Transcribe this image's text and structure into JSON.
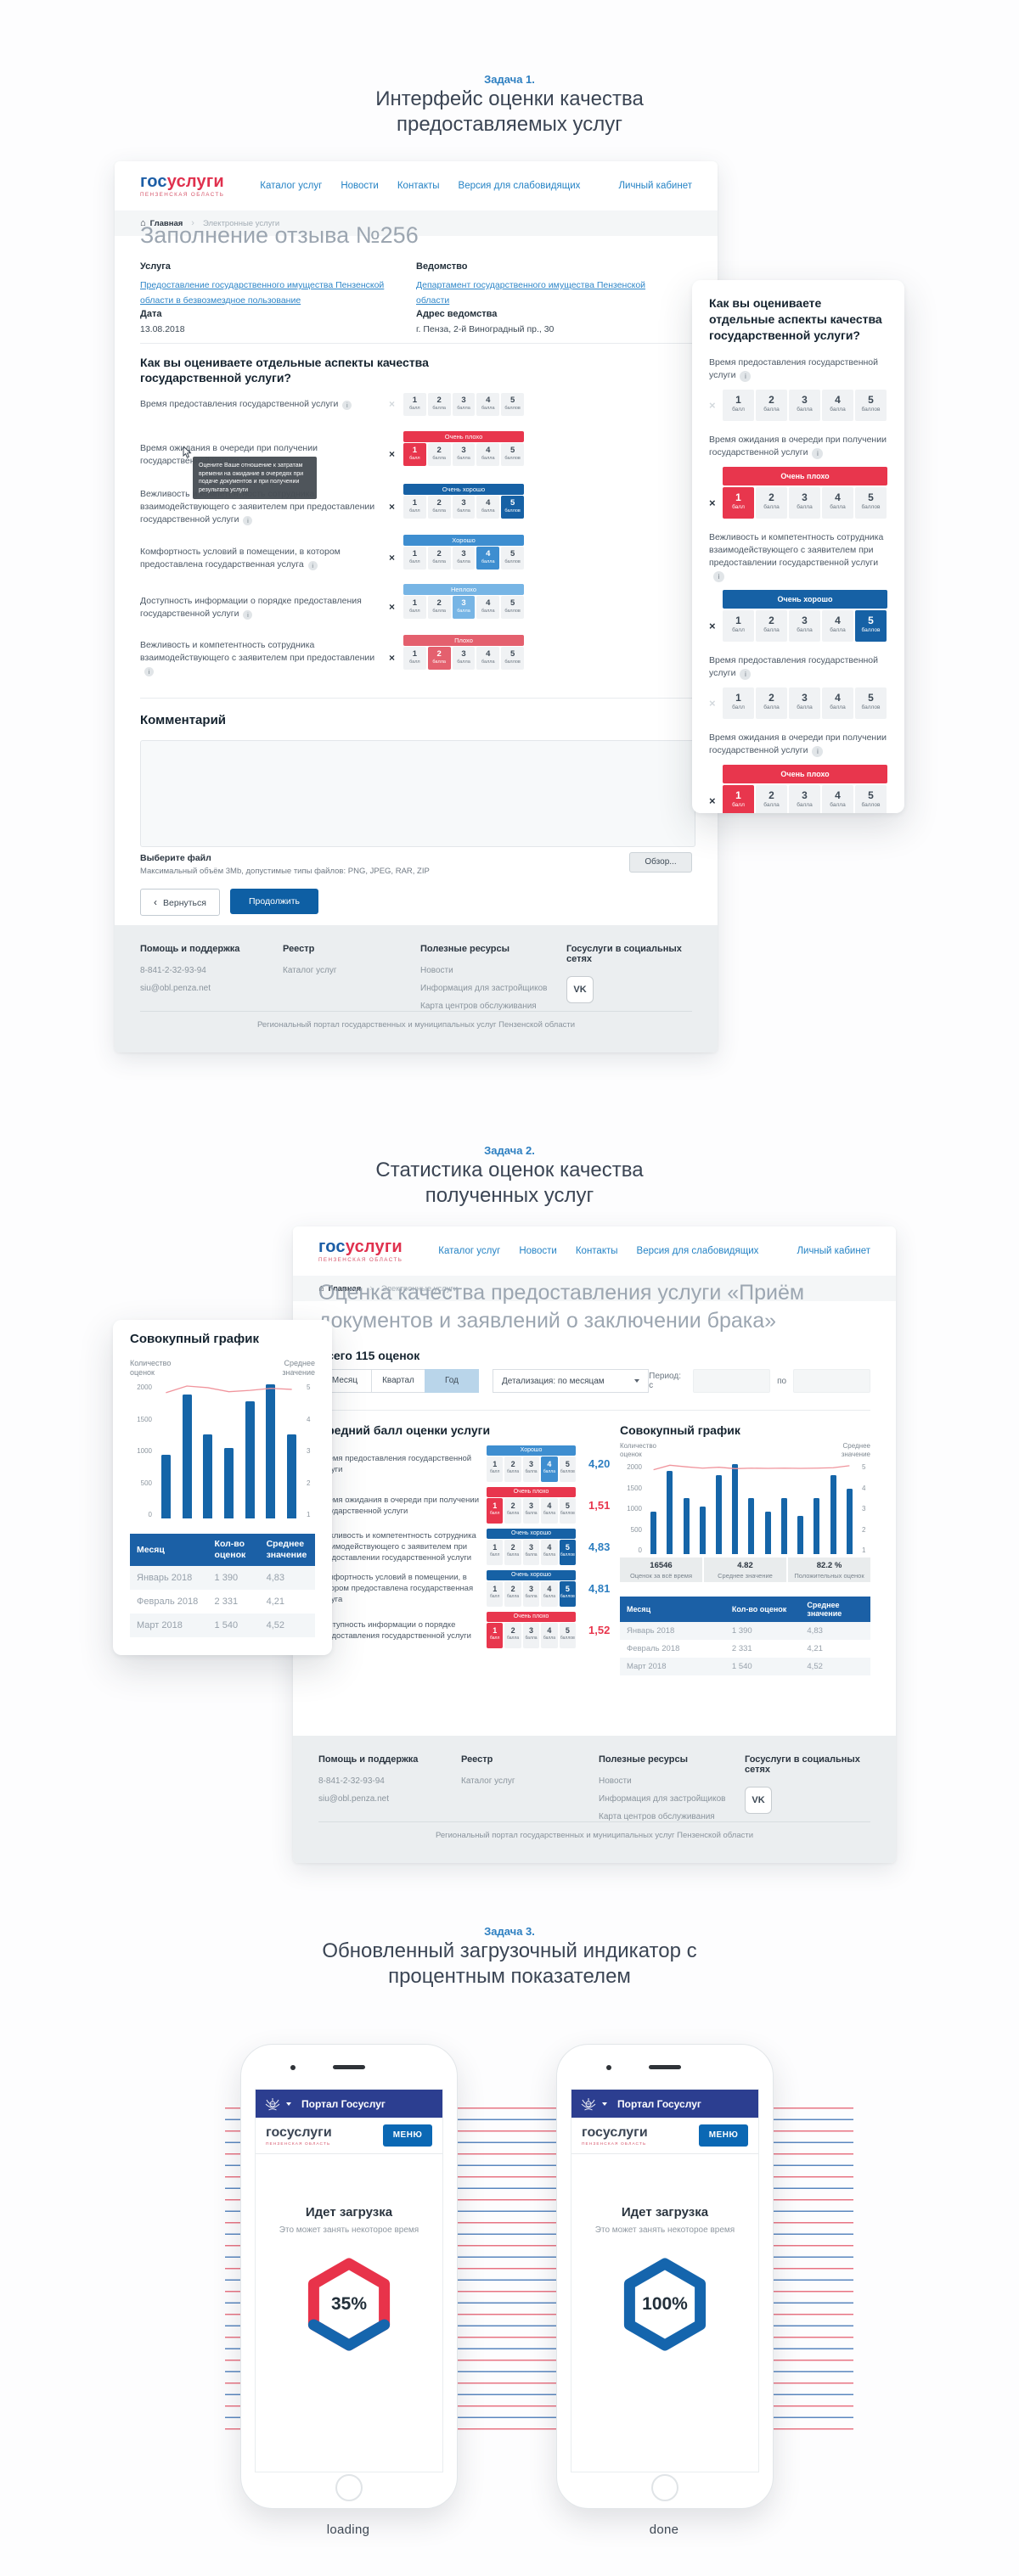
{
  "task1": {
    "label": "Задача 1.",
    "title": "Интерфейс оценки качества предоставляемых услуг"
  },
  "task2": {
    "label": "Задача 2.",
    "title": "Статистика оценок качества полученных услуг"
  },
  "task3": {
    "label": "Задача 3.",
    "title": "Обновленный загрузочный индикатор с процентным показателем"
  },
  "header": {
    "logo_blue": "гос",
    "logo_red": "услуги",
    "logo_sub": "ПЕНЗЕНСКАЯ ОБЛАСТЬ",
    "nav": [
      "Каталог услуг",
      "Новости",
      "Контакты",
      "Версия для слабовидящих"
    ],
    "account": "Личный кабинет"
  },
  "breadcrumb": {
    "home": "Главная",
    "current": "Электронные услуги"
  },
  "scale_words": [
    {
      "n": "1",
      "w": "балл"
    },
    {
      "n": "2",
      "w": "балла"
    },
    {
      "n": "3",
      "w": "балла"
    },
    {
      "n": "4",
      "w": "балла"
    },
    {
      "n": "5",
      "w": "баллов"
    }
  ],
  "page1": {
    "title": "Заполнение отзыва №256",
    "service_label": "Услуга",
    "service_link": "Предоставление государственного имущества Пензенской области в безвозмездное пользование",
    "agency_label": "Ведомство",
    "agency_link": "Департамент государственного имущества Пензенской области",
    "date_label": "Дата",
    "date_value": "13.08.2018",
    "address_label": "Адрес ведомства",
    "address_value": "г. Пенза, 2-й Виноградный пр., 30",
    "question": "Как вы оцениваете отдельные аспекты качества государственной услуги?",
    "tooltip": "Оцените Ваше отношение к затратам времени на ожидание в очередях при подаче документов и при получении результата услуги",
    "ratings": [
      {
        "label": "Время предоставления государственной услуги",
        "selected": 0,
        "band": null,
        "tone": ""
      },
      {
        "label": "Время ожидания в очереди при получении государственной услуги",
        "selected": 1,
        "band": "Очень плохо",
        "tone": "vbad"
      },
      {
        "label": "Вежливость и компетентность сотрудника взаимодействующего с заявителем при предоставлении государственной услуги",
        "selected": 5,
        "band": "Очень хорошо",
        "tone": "vgood"
      },
      {
        "label": "Комфортность условий в помещении, в котором предоставлена государственная услуга",
        "selected": 4,
        "band": "Хорошо",
        "tone": "good"
      },
      {
        "label": "Доступность информации о порядке предоставления государственной услуги",
        "selected": 3,
        "band": "Неплохо",
        "tone": "nbad"
      },
      {
        "label": "Вежливость и компетентность сотрудника взаимодействующего с заявителем при предоставлении",
        "selected": 2,
        "band": "Плохо",
        "tone": "bad"
      }
    ],
    "comment_label": "Комментарий",
    "file_label": "Выберите файл",
    "file_hint": "Максимальный объём 3Mb, допустимые типы файлов: PNG, JPEG, RAR, ZIP",
    "browse_button": "Обзор...",
    "back_button": "Вернуться",
    "continue_button": "Продолжить"
  },
  "mobile_card1": {
    "title": "Как вы оцениваете отдельные аспекты качества государственной услуги?",
    "items": [
      {
        "label": "Время предоставления государственной услуги",
        "selected": 0,
        "band": null,
        "tone": ""
      },
      {
        "label": "Время ожидания в очереди при получении государственной услуги",
        "selected": 1,
        "band": "Очень плохо",
        "tone": "vbad"
      },
      {
        "label": "Вежливость и компетентность сотрудника взаимодействующего с заявителем при предоставлении государственной услуги",
        "selected": 5,
        "band": "Очень хорошо",
        "tone": "vgood"
      },
      {
        "label": "Время предоставления государственной услуги",
        "selected": 0,
        "band": null,
        "tone": ""
      },
      {
        "label": "Время ожидания в очереди при получении государственной услуги",
        "selected": 1,
        "band": "Очень плохо",
        "tone": "vbad"
      }
    ]
  },
  "footer": {
    "col1_title": "Помощь и поддержка",
    "col1_items": [
      "8-841-2-32-93-94",
      "siu@obl.penza.net"
    ],
    "col2_title": "Реестр",
    "col2_items": [
      "Каталог услуг"
    ],
    "col3_title": "Полезные ресурсы",
    "col3_items": [
      "Новости",
      "Информация для застройщиков",
      "Карта центров обслуживания"
    ],
    "col4_title": "Госуслуги в социальных сетях",
    "social": "VK",
    "copyright": "Региональный портал государственных и муниципальных услуг Пензенской области"
  },
  "page2": {
    "title": "Оценка качества предоставления услуги «Приём документов и заявлений о заключении брака»",
    "total": "Всего 115 оценок",
    "period_tabs": [
      "Месяц",
      "Квартал",
      "Год"
    ],
    "detail_select": "Детализация: по месяцам",
    "period_label": "Период:  с",
    "to_label": "по",
    "avg_title": "Средний балл оценки услуги",
    "chart_title": "Совокупный график",
    "avg_rows": [
      {
        "label": "Время предоставления государственной услуги",
        "selected": 4,
        "band": "Хорошо",
        "tone": "good",
        "value": "4,20",
        "vcolor": "blue"
      },
      {
        "label": "Время ожидания в очереди при получении государственной услуги",
        "selected": 1,
        "band": "Очень плохо",
        "tone": "vbad",
        "value": "1,51",
        "vcolor": "red"
      },
      {
        "label": "Вежливость и компетентность сотрудника взаимодействующего с заявителем при предоставлении государственной услуги",
        "selected": 5,
        "band": "Очень хорошо",
        "tone": "vgood",
        "value": "4,83",
        "vcolor": "blue"
      },
      {
        "label": "Комфортность условий в помещении, в котором предоставлена государственная услуга",
        "selected": 5,
        "band": "Очень хорошо",
        "tone": "vgood",
        "value": "4,81",
        "vcolor": "blue"
      },
      {
        "label": "Доступность информации о порядке предоставления государственной услуги",
        "selected": 1,
        "band": "Очень плохо",
        "tone": "vbad",
        "value": "1,52",
        "vcolor": "red"
      }
    ],
    "stats": [
      {
        "value": "16546",
        "label": "Оценок за всё время"
      },
      {
        "value": "4.82",
        "label": "Среднее значение"
      },
      {
        "value": "82.2 %",
        "label": "Положительных оценок"
      }
    ]
  },
  "mobile_card2": {
    "title": "Совокупный график"
  },
  "ratings_table": {
    "headers": [
      "Месяц",
      "Кол-во оценок",
      "Среднее значение"
    ],
    "rows": [
      [
        "Январь 2018",
        "1 390",
        "4,83"
      ],
      [
        "Февраль 2018",
        "2 331",
        "4,21"
      ],
      [
        "Март 2018",
        "1 540",
        "4,52"
      ]
    ]
  },
  "chart_data": [
    {
      "id": "cumulative-chart-mobile",
      "type": "bar+line",
      "title": "Совокупный график",
      "ylabel": "Количество\nоценок",
      "y2label": "Среднее\nзначение",
      "ylim": [
        0,
        2000
      ],
      "y2lim": [
        1,
        5
      ],
      "yticks": [
        "2000",
        "1500",
        "1000",
        "500",
        "0"
      ],
      "y2ticks": [
        "5",
        "4",
        "3",
        "2",
        "1"
      ],
      "x": [
        1,
        2,
        3,
        4,
        5,
        6,
        7
      ],
      "bars": [
        950,
        1850,
        1250,
        1050,
        1750,
        2000,
        1250
      ],
      "line": [
        4.75,
        4.95,
        4.9,
        4.78,
        4.82,
        4.88,
        4.85
      ],
      "bar_color": "#1565a8",
      "line_color": "#f0949c",
      "grid": false,
      "legend": "none"
    },
    {
      "id": "cumulative-chart-desktop",
      "type": "bar+line",
      "title": "Совокупный график",
      "ylabel": "Количество\nоценок",
      "y2label": "Среднее\nзначение",
      "ylim": [
        0,
        2000
      ],
      "y2lim": [
        1,
        5
      ],
      "yticks": [
        "2000",
        "1500",
        "1000",
        "500",
        "0"
      ],
      "y2ticks": [
        "5",
        "4",
        "3",
        "2",
        "1"
      ],
      "x": [
        1,
        2,
        3,
        4,
        5,
        6,
        7,
        8,
        9,
        10,
        11,
        12,
        13
      ],
      "bars": [
        950,
        1850,
        1250,
        1050,
        1750,
        2000,
        1250,
        950,
        1250,
        850,
        1250,
        1750,
        1450
      ],
      "line": [
        4.75,
        4.95,
        4.88,
        4.82,
        4.86,
        4.8,
        4.82,
        4.81,
        4.82,
        4.81,
        4.82,
        4.84,
        4.93
      ],
      "bar_color": "#1565a8",
      "line_color": "#f0949c",
      "grid": false,
      "legend": "none"
    }
  ],
  "phones": {
    "statusbar_title": "Портал Госуслуг",
    "menu_button": "МЕНЮ",
    "loading_title": "Идет загрузка",
    "loading_sub": "Это может занять некоторое время",
    "phone1_percent": "35%",
    "phone1_caption": "loading",
    "phone2_percent": "100%",
    "phone2_caption": "done",
    "progress_red": "#e8334a",
    "progress_blue": "#1565ad"
  }
}
